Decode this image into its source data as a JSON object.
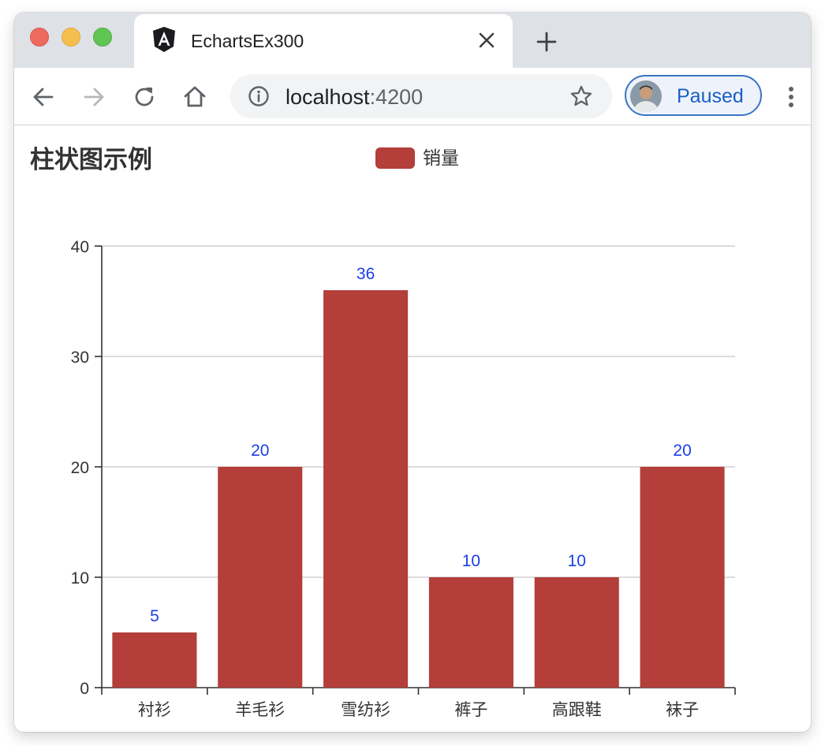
{
  "browser": {
    "tab": {
      "title": "EchartsEx300",
      "icon": "angular-icon"
    },
    "address": {
      "host": "localhost",
      "port": ":4200"
    },
    "profile": {
      "label": "Paused"
    }
  },
  "colors": {
    "bar": "#b33e3a",
    "data_label": "#1a3fe6",
    "axis": "#333333",
    "grid": "#c8c8c8",
    "profile_accent": "#3b73c4"
  },
  "chart_data": {
    "type": "bar",
    "title": "柱状图示例",
    "legend": {
      "position": "top-center",
      "entries": [
        "销量"
      ]
    },
    "categories": [
      "衬衫",
      "羊毛衫",
      "雪纺衫",
      "裤子",
      "高跟鞋",
      "袜子"
    ],
    "series": [
      {
        "name": "销量",
        "values": [
          5,
          20,
          36,
          10,
          10,
          20
        ],
        "show_labels": true
      }
    ],
    "ylim": [
      0,
      40
    ],
    "yticks": [
      0,
      10,
      20,
      30,
      40
    ],
    "grid": true,
    "xlabel": "",
    "ylabel": ""
  }
}
